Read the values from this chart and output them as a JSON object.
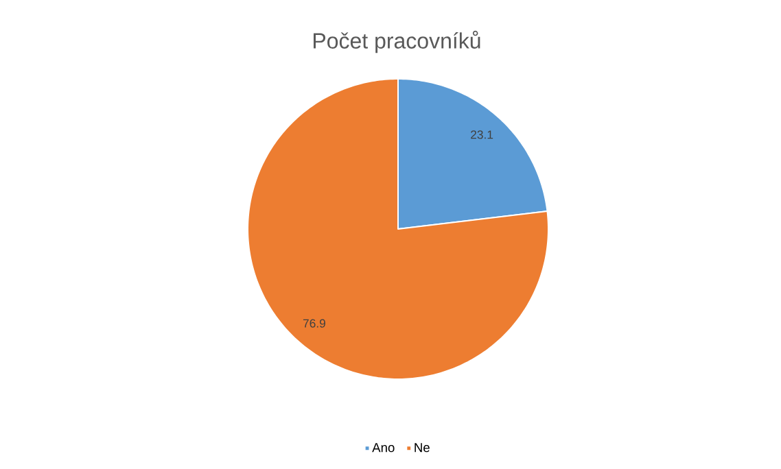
{
  "chart_data": {
    "type": "pie",
    "title": "Počet pracovníků",
    "categories": [
      "Ano",
      "Ne"
    ],
    "values": [
      23.1,
      76.9
    ],
    "colors": [
      "#5b9bd5",
      "#ed7d31"
    ],
    "data_labels": true,
    "legend": "bottom"
  }
}
